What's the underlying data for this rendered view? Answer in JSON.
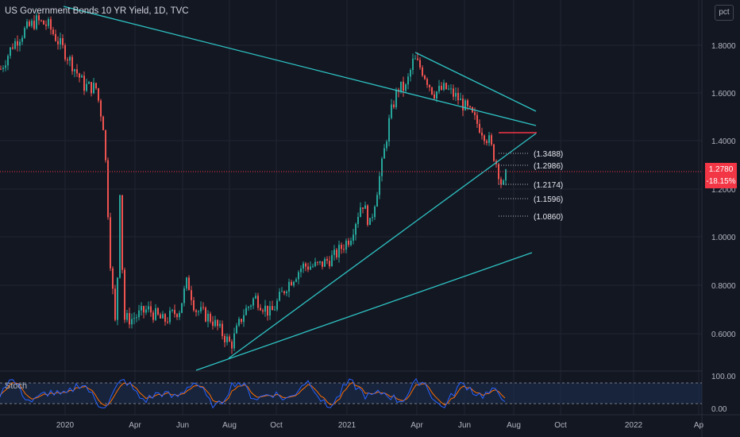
{
  "header": {
    "title": "US Government Bonds 10 YR Yield, 1D, TVC"
  },
  "toolbar": {
    "scale_label": "pct"
  },
  "price_axis": {
    "labels": [
      "1.8000",
      "1.6000",
      "1.4000",
      "1.2000",
      "1.0000",
      "0.8000",
      "0.6000"
    ],
    "current_price": "1.2780",
    "current_change": "-18.15%"
  },
  "time_axis": {
    "labels": [
      "2020",
      "Apr",
      "Jun",
      "Aug",
      "Oct",
      "2021",
      "Apr",
      "Jun",
      "Aug",
      "Oct",
      "2022",
      "Ap"
    ]
  },
  "fib_levels": [
    "(1.3488)",
    "(1.2986)",
    "(1.2174)",
    "(1.1596)",
    "(1.0860)"
  ],
  "indicator": {
    "name": "Stoch",
    "axis_labels": [
      "100.00",
      "0.00"
    ]
  },
  "colors": {
    "background": "#131722",
    "up": "#26a69a",
    "down": "#ef5350",
    "trendline": "#2ec4c4",
    "stoch_k": "#2962ff",
    "stoch_d": "#ff6d00",
    "resistance": "#f23645"
  }
}
